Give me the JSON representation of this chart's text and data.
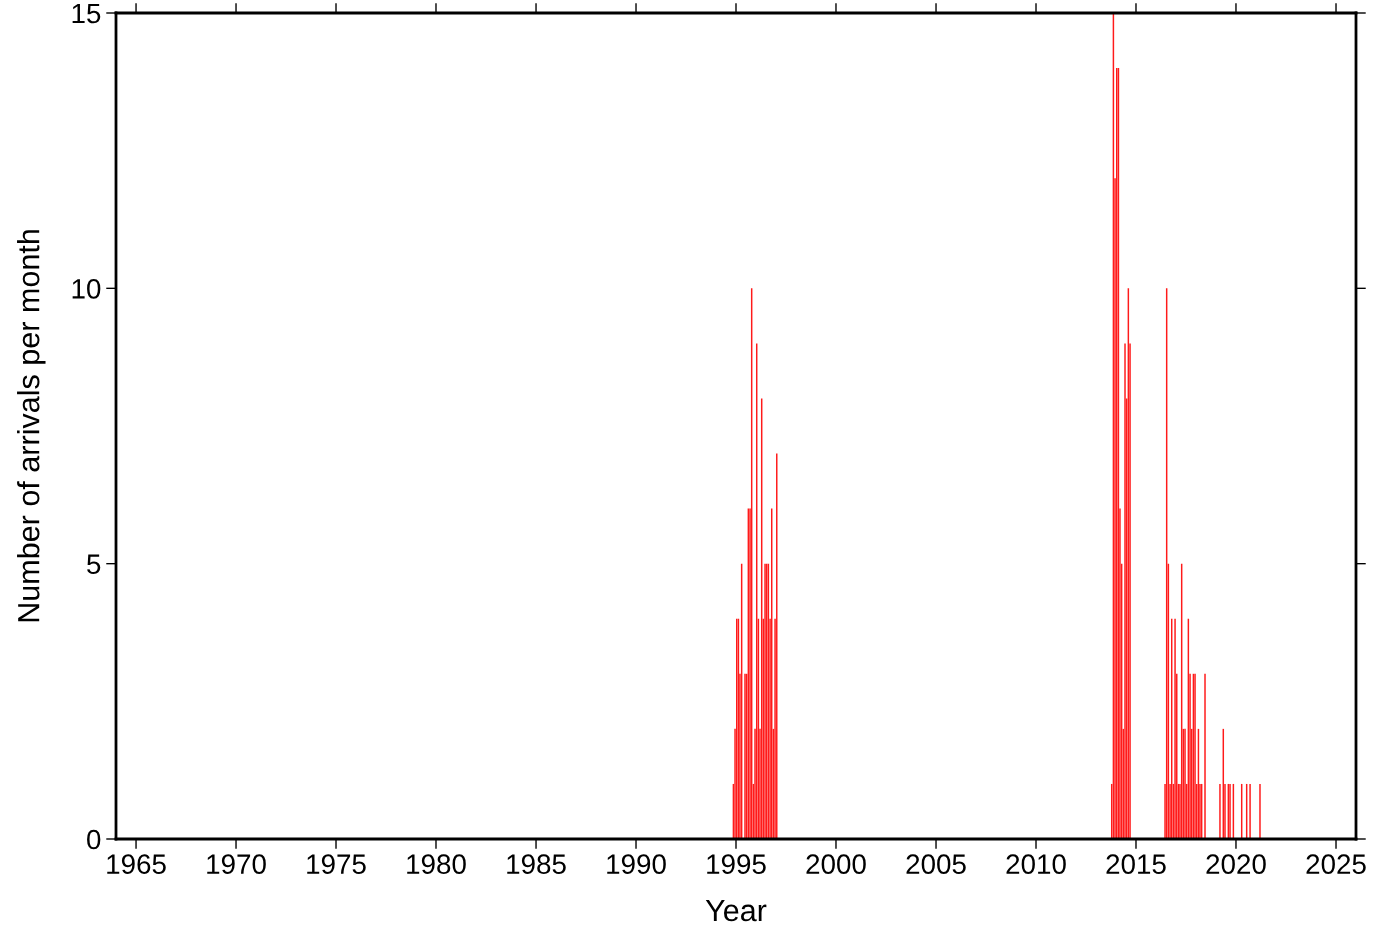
{
  "chart_data": {
    "type": "bar",
    "xlabel": "Year",
    "ylabel": "Number of arrivals per month",
    "x": [
      "1994-11",
      "1994-12",
      "1995-01",
      "1995-02",
      "1995-03",
      "1995-04",
      "1995-06",
      "1995-07",
      "1995-08",
      "1995-09",
      "1995-10",
      "1995-11",
      "1995-12",
      "1996-01",
      "1996-02",
      "1996-03",
      "1996-04",
      "1996-05",
      "1996-06",
      "1996-07",
      "1996-08",
      "1996-09",
      "1996-10",
      "1996-11",
      "1996-12",
      "1997-01",
      "2013-10",
      "2013-11",
      "2013-12",
      "2014-01",
      "2014-02",
      "2014-03",
      "2014-04",
      "2014-05",
      "2014-06",
      "2014-07",
      "2014-08",
      "2014-09",
      "2016-06",
      "2016-07",
      "2016-08",
      "2016-09",
      "2016-10",
      "2016-11",
      "2016-12",
      "2017-01",
      "2017-02",
      "2017-03",
      "2017-04",
      "2017-05",
      "2017-06",
      "2017-07",
      "2017-08",
      "2017-09",
      "2017-10",
      "2017-11",
      "2017-12",
      "2018-01",
      "2018-02",
      "2018-03",
      "2018-04",
      "2018-06",
      "2019-03",
      "2019-05",
      "2019-06",
      "2019-08",
      "2019-09",
      "2019-11",
      "2020-04",
      "2020-07",
      "2020-09",
      "2021-03"
    ],
    "values": [
      1,
      2,
      4,
      4,
      3,
      5,
      3,
      3,
      6,
      6,
      10,
      1,
      2,
      9,
      4,
      2,
      8,
      4,
      5,
      5,
      5,
      4,
      6,
      2,
      4,
      7,
      1,
      15,
      12,
      14,
      14,
      6,
      5,
      2,
      9,
      8,
      10,
      9,
      1,
      10,
      5,
      1,
      4,
      1,
      4,
      3,
      1,
      1,
      5,
      2,
      2,
      1,
      4,
      3,
      2,
      3,
      3,
      1,
      2,
      1,
      1,
      3,
      1,
      2,
      1,
      1,
      1,
      1,
      1,
      1,
      1,
      1
    ],
    "color": "#ff1a1a",
    "xlim": [
      "1964",
      "2026"
    ],
    "xticks": [
      "1965",
      "1970",
      "1975",
      "1980",
      "1985",
      "1990",
      "1995",
      "2000",
      "2005",
      "2010",
      "2015",
      "2020",
      "2025"
    ],
    "ylim": [
      0,
      15
    ],
    "yticks": [
      0,
      5,
      10,
      15
    ],
    "grid": false,
    "legend": false
  }
}
